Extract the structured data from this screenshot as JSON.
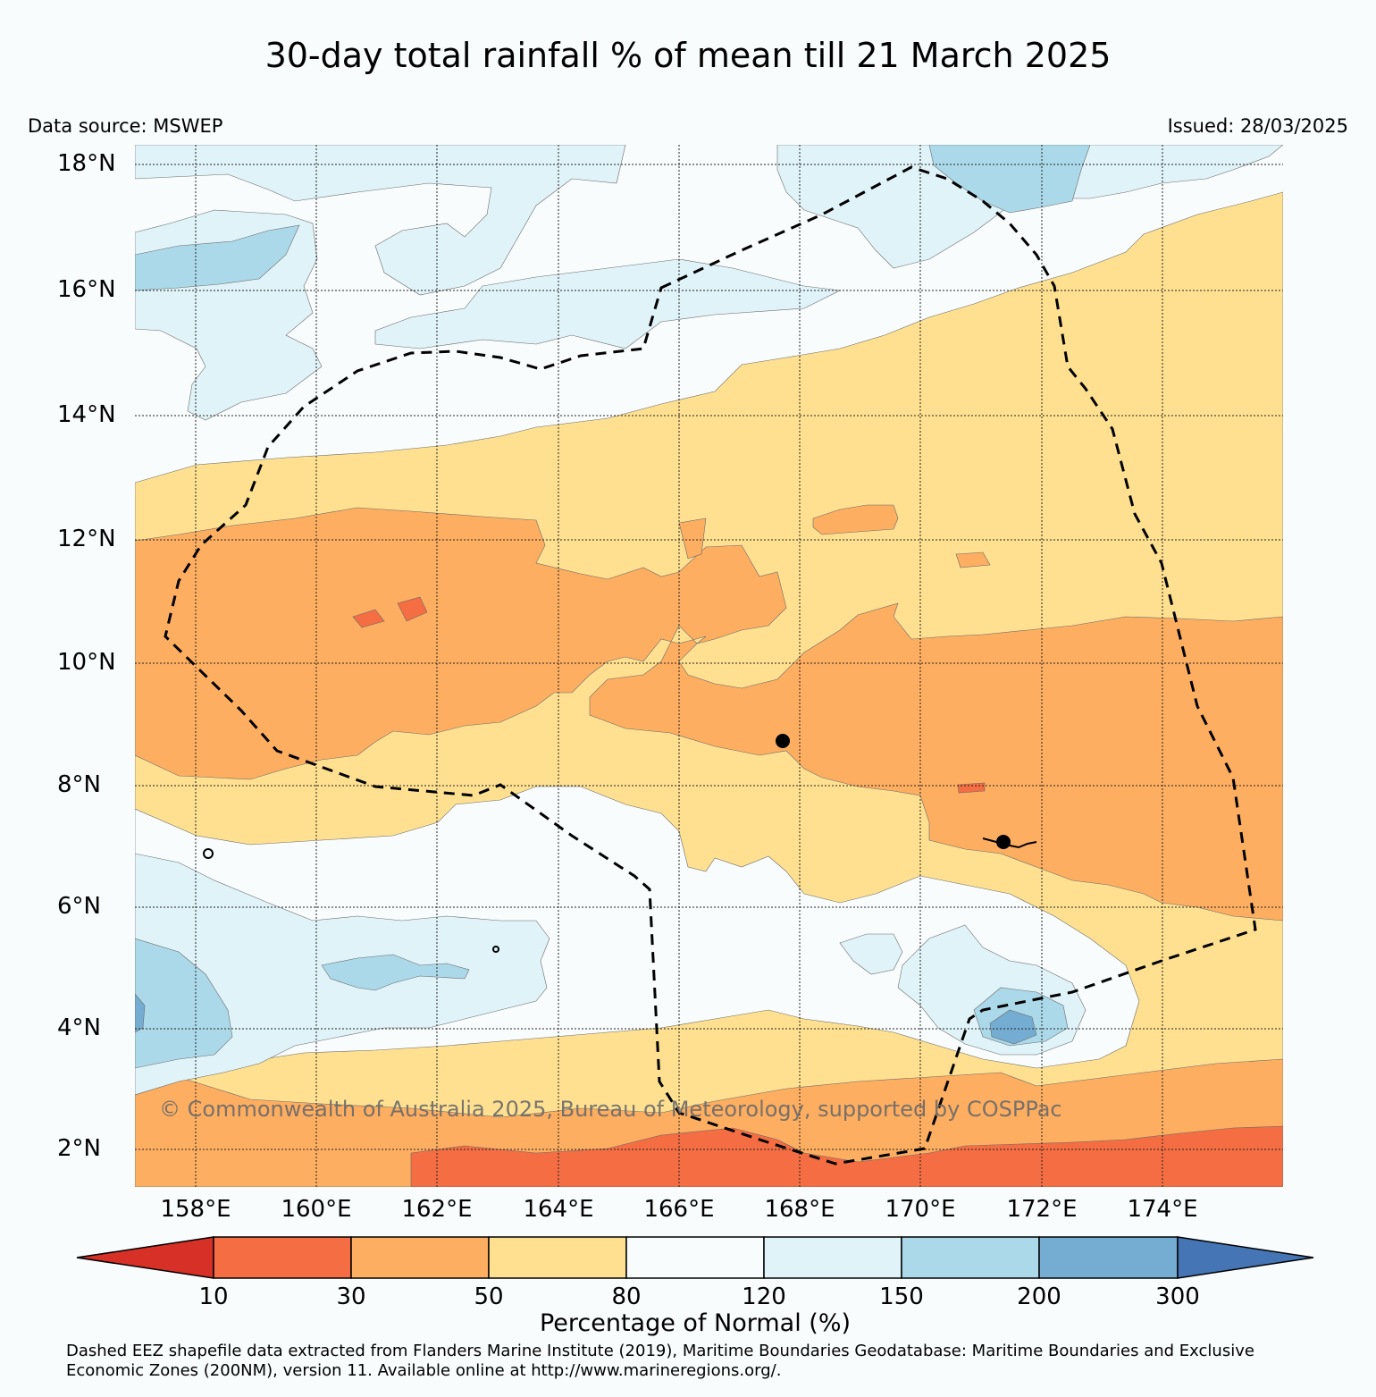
{
  "title": "30-day total rainfall % of mean till 21 March 2025",
  "data_source": "Data source: MSWEP",
  "issued": "Issued: 28/03/2025",
  "copyright": "© Commonwealth of Australia 2025, Bureau of Meteorology, supported by COSPPac",
  "lat_labels": [
    "18°N",
    "16°N",
    "14°N",
    "12°N",
    "10°N",
    "8°N",
    "6°N",
    "4°N",
    "2°N"
  ],
  "lon_labels": [
    "158°E",
    "160°E",
    "162°E",
    "164°E",
    "166°E",
    "168°E",
    "170°E",
    "172°E",
    "174°E"
  ],
  "colorbar": {
    "label": "Percentage of Normal (%)",
    "ticks": [
      "10",
      "30",
      "50",
      "80",
      "120",
      "150",
      "200",
      "300"
    ],
    "colors": {
      "lt10": "#d73027",
      "10-30": "#f46d43",
      "30-50": "#fdae61",
      "50-80": "#fee090",
      "80-120": "#f8fcfd",
      "120-150": "#e0f3f8",
      "150-200": "#abd9e9",
      "200-300": "#74add1",
      "gt300": "#4575b4"
    }
  },
  "footnote_line1": "Dashed EEZ shapefile data extracted from Flanders Marine Institute (2019), Maritime Boundaries Geodatabase: Maritime Boundaries and Exclusive",
  "footnote_line2": "Economic Zones (200NM), version 11. Available online at http://www.marineregions.org/."
}
